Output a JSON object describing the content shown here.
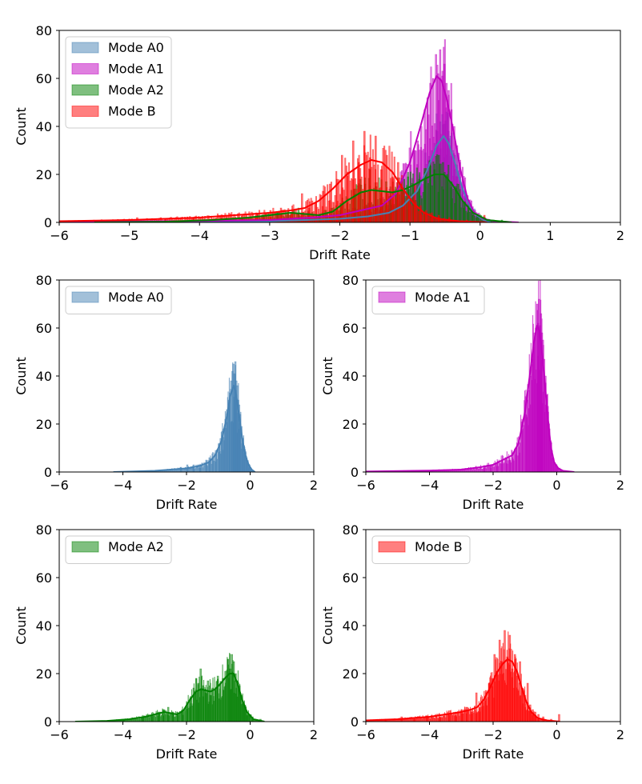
{
  "colors": {
    "Mode A0": "#4682b4",
    "Mode A1": "#bf00bf",
    "Mode A2": "#008000",
    "Mode B": "#ff0000"
  },
  "chart_data": [
    {
      "id": "combined",
      "type": "histogram",
      "title": "",
      "xlabel": "Drift Rate",
      "ylabel": "Count",
      "xlim": [
        -6,
        2
      ],
      "ylim": [
        0,
        80
      ],
      "xticks": [
        "−6",
        "−5",
        "−4",
        "−3",
        "−2",
        "−1",
        "0",
        "1",
        "2"
      ],
      "yticks": [
        "0",
        "20",
        "40",
        "60",
        "80"
      ],
      "legend": [
        "Mode A0",
        "Mode A1",
        "Mode A2",
        "Mode B"
      ],
      "legend_position": "top-left",
      "series": [
        "Mode A0",
        "Mode A1",
        "Mode A2",
        "Mode B"
      ]
    },
    {
      "id": "a0",
      "type": "histogram",
      "xlabel": "Drift Rate",
      "ylabel": "Count",
      "xlim": [
        -6,
        2
      ],
      "ylim": [
        0,
        80
      ],
      "xticks": [
        "−6",
        "−4",
        "−2",
        "0",
        "2"
      ],
      "yticks": [
        "0",
        "20",
        "40",
        "60",
        "80"
      ],
      "legend": [
        "Mode A0"
      ],
      "legend_position": "top-left",
      "series": [
        "Mode A0"
      ]
    },
    {
      "id": "a1",
      "type": "histogram",
      "xlabel": "Drift Rate",
      "ylabel": "Count",
      "xlim": [
        -6,
        2
      ],
      "ylim": [
        0,
        80
      ],
      "xticks": [
        "−6",
        "−4",
        "−2",
        "0",
        "2"
      ],
      "yticks": [
        "0",
        "20",
        "40",
        "60",
        "80"
      ],
      "legend": [
        "Mode A1"
      ],
      "legend_position": "top-left",
      "series": [
        "Mode A1"
      ]
    },
    {
      "id": "a2",
      "type": "histogram",
      "xlabel": "Drift Rate",
      "ylabel": "Count",
      "xlim": [
        -6,
        2
      ],
      "ylim": [
        0,
        80
      ],
      "xticks": [
        "−6",
        "−4",
        "−2",
        "0",
        "2"
      ],
      "yticks": [
        "0",
        "20",
        "40",
        "60",
        "80"
      ],
      "legend": [
        "Mode A2"
      ],
      "legend_position": "top-left",
      "series": [
        "Mode A2"
      ]
    },
    {
      "id": "b",
      "type": "histogram",
      "xlabel": "Drift Rate",
      "ylabel": "Count",
      "xlim": [
        -6,
        2
      ],
      "ylim": [
        0,
        80
      ],
      "xticks": [
        "−6",
        "−4",
        "−2",
        "0",
        "2"
      ],
      "yticks": [
        "0",
        "20",
        "40",
        "60",
        "80"
      ],
      "legend": [
        "Mode B"
      ],
      "legend_position": "top-left",
      "series": [
        "Mode B"
      ]
    }
  ],
  "distributions": {
    "Mode A0": {
      "range": [
        -4.3,
        0.15
      ],
      "kde": [
        [
          -4.3,
          0
        ],
        [
          -3.0,
          0.5
        ],
        [
          -2.5,
          1
        ],
        [
          -2.0,
          1.5
        ],
        [
          -1.6,
          2.5
        ],
        [
          -1.3,
          4
        ],
        [
          -1.1,
          7
        ],
        [
          -0.9,
          13
        ],
        [
          -0.75,
          22
        ],
        [
          -0.62,
          32
        ],
        [
          -0.52,
          36
        ],
        [
          -0.45,
          33
        ],
        [
          -0.35,
          24
        ],
        [
          -0.25,
          14
        ],
        [
          -0.15,
          7
        ],
        [
          -0.05,
          3
        ],
        [
          0.05,
          1
        ],
        [
          0.15,
          0
        ]
      ],
      "hist": [
        [
          -2.2,
          2
        ],
        [
          -2.0,
          3
        ],
        [
          -1.8,
          3
        ],
        [
          -1.6,
          3
        ],
        [
          -1.4,
          5
        ],
        [
          -1.3,
          6
        ],
        [
          -1.2,
          6
        ],
        [
          -1.1,
          9
        ],
        [
          -1.0,
          12
        ],
        [
          -0.95,
          14
        ],
        [
          -0.9,
          17
        ],
        [
          -0.85,
          18
        ],
        [
          -0.8,
          22
        ],
        [
          -0.75,
          26
        ],
        [
          -0.7,
          30
        ],
        [
          -0.66,
          33
        ],
        [
          -0.62,
          38
        ],
        [
          -0.58,
          42
        ],
        [
          -0.55,
          45
        ],
        [
          -0.52,
          41
        ],
        [
          -0.49,
          46
        ],
        [
          -0.46,
          38
        ],
        [
          -0.43,
          36
        ],
        [
          -0.4,
          30
        ],
        [
          -0.37,
          28
        ],
        [
          -0.34,
          24
        ],
        [
          -0.3,
          19
        ],
        [
          -0.26,
          14
        ],
        [
          -0.22,
          11
        ],
        [
          -0.18,
          8
        ],
        [
          -0.14,
          6
        ],
        [
          -0.1,
          4
        ],
        [
          -0.06,
          3
        ],
        [
          -0.02,
          2
        ],
        [
          0.02,
          1
        ]
      ]
    },
    "Mode A1": {
      "range": [
        -6,
        0.55
      ],
      "kde": [
        [
          -6,
          0.2
        ],
        [
          -4,
          0.6
        ],
        [
          -3,
          1
        ],
        [
          -2.4,
          2
        ],
        [
          -2.0,
          3
        ],
        [
          -1.7,
          5
        ],
        [
          -1.4,
          7
        ],
        [
          -1.2,
          12
        ],
        [
          -1.0,
          25
        ],
        [
          -0.85,
          40
        ],
        [
          -0.72,
          54
        ],
        [
          -0.62,
          61
        ],
        [
          -0.55,
          59
        ],
        [
          -0.48,
          52
        ],
        [
          -0.38,
          38
        ],
        [
          -0.28,
          22
        ],
        [
          -0.18,
          10
        ],
        [
          -0.08,
          4
        ],
        [
          0.05,
          1.5
        ],
        [
          0.2,
          0.5
        ],
        [
          0.55,
          0
        ]
      ],
      "hist": [
        [
          -2.3,
          2
        ],
        [
          -2.1,
          3
        ],
        [
          -1.9,
          4
        ],
        [
          -1.75,
          5
        ],
        [
          -1.6,
          6
        ],
        [
          -1.5,
          5
        ],
        [
          -1.4,
          8
        ],
        [
          -1.3,
          10
        ],
        [
          -1.2,
          12
        ],
        [
          -1.1,
          18
        ],
        [
          -1.0,
          24
        ],
        [
          -0.95,
          30
        ],
        [
          -0.9,
          34
        ],
        [
          -0.85,
          40
        ],
        [
          -0.8,
          47
        ],
        [
          -0.76,
          52
        ],
        [
          -0.72,
          58
        ],
        [
          -0.68,
          60
        ],
        [
          -0.64,
          70
        ],
        [
          -0.61,
          62
        ],
        [
          -0.58,
          72
        ],
        [
          -0.55,
          61
        ],
        [
          -0.52,
          66
        ],
        [
          -0.49,
          58
        ],
        [
          -0.46,
          55
        ],
        [
          -0.42,
          47
        ],
        [
          -0.38,
          40
        ],
        [
          -0.34,
          32
        ],
        [
          -0.3,
          25
        ],
        [
          -0.26,
          18
        ],
        [
          -0.22,
          13
        ],
        [
          -0.18,
          9
        ],
        [
          -0.14,
          6
        ],
        [
          -0.1,
          4
        ],
        [
          -0.05,
          3
        ],
        [
          0.0,
          2
        ],
        [
          0.1,
          1
        ]
      ]
    },
    "Mode A2": {
      "range": [
        -5.5,
        0.45
      ],
      "kde": [
        [
          -5.5,
          0
        ],
        [
          -4.5,
          0.3
        ],
        [
          -3.8,
          1
        ],
        [
          -3.3,
          2
        ],
        [
          -3.0,
          3
        ],
        [
          -2.7,
          4
        ],
        [
          -2.5,
          3.5
        ],
        [
          -2.3,
          3
        ],
        [
          -2.1,
          4.5
        ],
        [
          -1.9,
          9
        ],
        [
          -1.7,
          12.5
        ],
        [
          -1.55,
          13.5
        ],
        [
          -1.4,
          13
        ],
        [
          -1.25,
          12.5
        ],
        [
          -1.1,
          13.5
        ],
        [
          -0.95,
          15.5
        ],
        [
          -0.8,
          18
        ],
        [
          -0.65,
          20
        ],
        [
          -0.52,
          20
        ],
        [
          -0.4,
          16
        ],
        [
          -0.25,
          9
        ],
        [
          -0.1,
          4
        ],
        [
          0.1,
          1
        ],
        [
          0.45,
          0
        ]
      ],
      "hist": [
        [
          -4.0,
          1
        ],
        [
          -3.4,
          2
        ],
        [
          -3.1,
          3
        ],
        [
          -2.9,
          4
        ],
        [
          -2.75,
          5
        ],
        [
          -2.6,
          6
        ],
        [
          -2.45,
          4
        ],
        [
          -2.3,
          3
        ],
        [
          -2.15,
          5
        ],
        [
          -2.0,
          8
        ],
        [
          -1.9,
          10
        ],
        [
          -1.8,
          14
        ],
        [
          -1.72,
          18
        ],
        [
          -1.65,
          16
        ],
        [
          -1.58,
          22
        ],
        [
          -1.5,
          15
        ],
        [
          -1.42,
          12
        ],
        [
          -1.35,
          17
        ],
        [
          -1.28,
          11
        ],
        [
          -1.2,
          14
        ],
        [
          -1.12,
          13
        ],
        [
          -1.04,
          19
        ],
        [
          -0.96,
          16
        ],
        [
          -0.88,
          18
        ],
        [
          -0.8,
          21
        ],
        [
          -0.72,
          26
        ],
        [
          -0.66,
          22
        ],
        [
          -0.6,
          28
        ],
        [
          -0.54,
          25
        ],
        [
          -0.48,
          20
        ],
        [
          -0.42,
          17
        ],
        [
          -0.36,
          15
        ],
        [
          -0.3,
          11
        ],
        [
          -0.24,
          8
        ],
        [
          -0.18,
          6
        ],
        [
          -0.12,
          4
        ],
        [
          -0.05,
          3
        ],
        [
          0.05,
          2
        ],
        [
          0.3,
          1
        ]
      ]
    },
    "Mode B": {
      "range": [
        -6,
        0.1
      ],
      "kde": [
        [
          -6,
          0.5
        ],
        [
          -5,
          1
        ],
        [
          -4.5,
          1.5
        ],
        [
          -4.0,
          2
        ],
        [
          -3.5,
          3
        ],
        [
          -3.0,
          4
        ],
        [
          -2.7,
          5
        ],
        [
          -2.5,
          6
        ],
        [
          -2.3,
          9
        ],
        [
          -2.1,
          14
        ],
        [
          -1.9,
          20
        ],
        [
          -1.7,
          24
        ],
        [
          -1.55,
          26
        ],
        [
          -1.4,
          25
        ],
        [
          -1.25,
          21
        ],
        [
          -1.1,
          14
        ],
        [
          -0.95,
          8
        ],
        [
          -0.8,
          4
        ],
        [
          -0.6,
          1.5
        ],
        [
          -0.3,
          0.5
        ],
        [
          0.1,
          0
        ]
      ],
      "hist": [
        [
          -5.4,
          1
        ],
        [
          -4.9,
          2
        ],
        [
          -4.5,
          1
        ],
        [
          -4.1,
          2
        ],
        [
          -3.7,
          2
        ],
        [
          -3.4,
          3
        ],
        [
          -3.2,
          4
        ],
        [
          -3.0,
          5
        ],
        [
          -2.85,
          6
        ],
        [
          -2.7,
          4
        ],
        [
          -2.55,
          12
        ],
        [
          -2.45,
          6
        ],
        [
          -2.35,
          8
        ],
        [
          -2.25,
          13
        ],
        [
          -2.15,
          16
        ],
        [
          -2.05,
          18
        ],
        [
          -1.98,
          28
        ],
        [
          -1.9,
          21
        ],
        [
          -1.82,
          34
        ],
        [
          -1.74,
          25
        ],
        [
          -1.66,
          38
        ],
        [
          -1.58,
          27
        ],
        [
          -1.5,
          36
        ],
        [
          -1.42,
          22
        ],
        [
          -1.34,
          28
        ],
        [
          -1.26,
          19
        ],
        [
          -1.18,
          25
        ],
        [
          -1.1,
          14
        ],
        [
          -1.02,
          11
        ],
        [
          -0.94,
          16
        ],
        [
          -0.86,
          7
        ],
        [
          -0.78,
          5
        ],
        [
          -0.7,
          4
        ],
        [
          -0.6,
          3
        ],
        [
          -0.45,
          2
        ],
        [
          -0.2,
          1
        ],
        [
          0.05,
          3
        ]
      ]
    }
  }
}
